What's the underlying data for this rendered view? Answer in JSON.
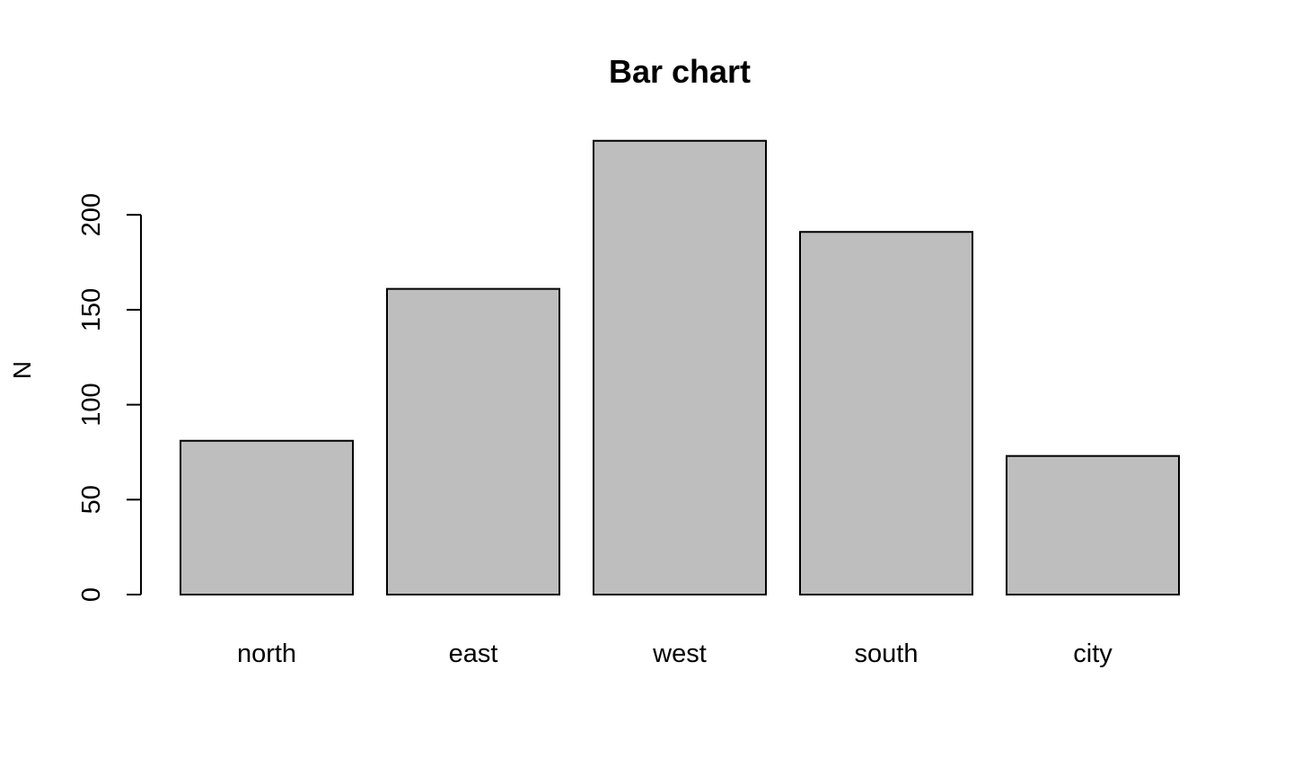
{
  "chart_data": {
    "type": "bar",
    "title": "Bar chart",
    "xlabel": "",
    "ylabel": "N",
    "categories": [
      "north",
      "east",
      "west",
      "south",
      "city"
    ],
    "values": [
      81,
      161,
      239,
      191,
      73
    ],
    "ylim": [
      0,
      239
    ],
    "y_ticks": [
      0,
      50,
      100,
      150,
      200
    ],
    "grid": false,
    "bar_color": "#bebebe",
    "border_color": "#000000"
  }
}
